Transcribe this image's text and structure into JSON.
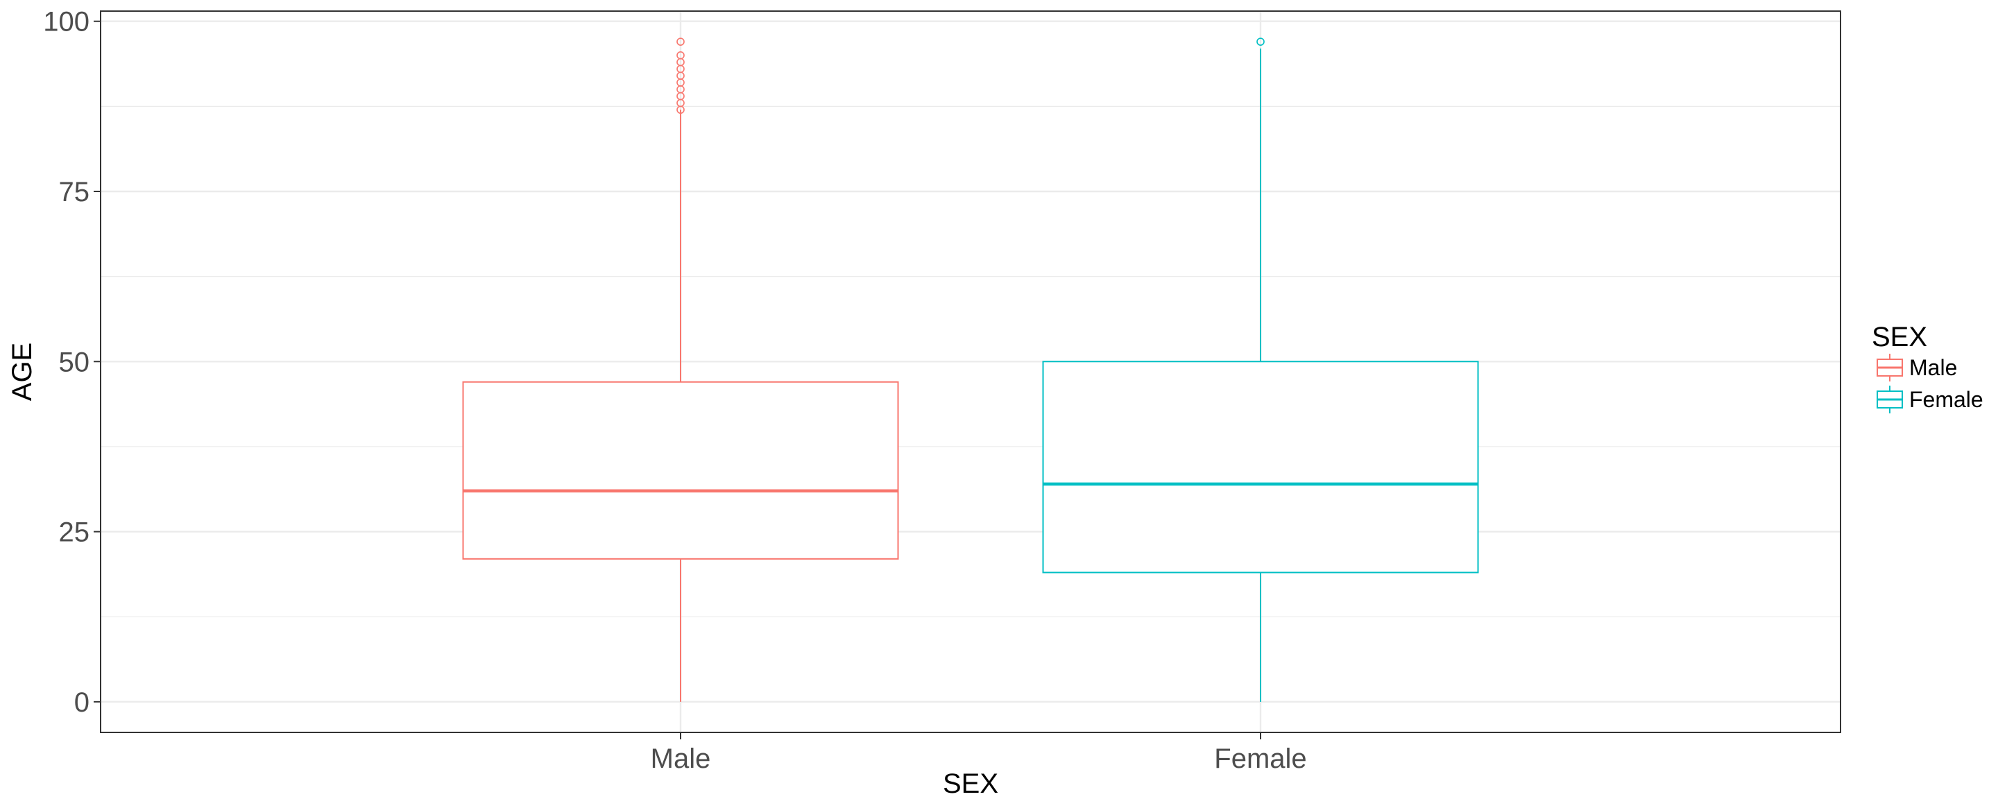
{
  "chart_data": {
    "type": "boxplot",
    "title": "",
    "xlabel": "SEX",
    "ylabel": "AGE",
    "categories": [
      "Male",
      "Female"
    ],
    "ylim": [
      -4.5,
      101.5
    ],
    "yticks": [
      0,
      25,
      50,
      75,
      100
    ],
    "grid": true,
    "legend": {
      "title": "SEX",
      "position": "right",
      "entries": [
        "Male",
        "Female"
      ]
    },
    "series": [
      {
        "name": "Male",
        "color": "#F8766D",
        "min": 0,
        "q1": 21,
        "median": 31,
        "q3": 47,
        "max": 87,
        "outliers": [
          87,
          88,
          89,
          90,
          91,
          92,
          93,
          94,
          95,
          97
        ]
      },
      {
        "name": "Female",
        "color": "#00BFC4",
        "min": 0,
        "q1": 19,
        "median": 32,
        "q3": 50,
        "max": 96,
        "outliers": [
          97
        ]
      }
    ]
  }
}
